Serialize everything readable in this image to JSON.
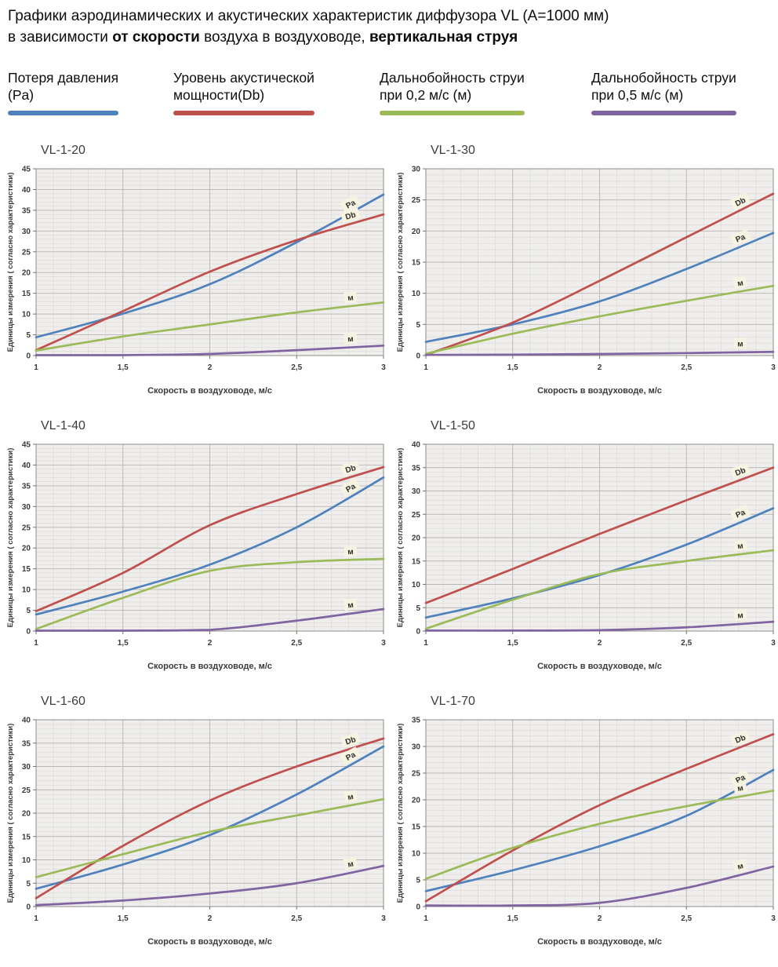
{
  "header": {
    "line1": "Графики аэродинамических и акустических характеристик  диффузора VL (A=1000 мм)",
    "line2_pre": "в зависимости ",
    "line2_bold1": "от скорости",
    "line2_mid": " воздуха в воздуховоде, ",
    "line2_bold2": "вертикальная струя"
  },
  "legend": {
    "items": [
      {
        "line1": "Потеря давления",
        "line2": "(Pa)",
        "color": "#4f81bd"
      },
      {
        "line1": "Уровень акустической",
        "line2": "мощности(Db)",
        "color": "#c0504d"
      },
      {
        "line1": "Дальнобойность струи",
        "line2": "при 0,2 м/с (м)",
        "color": "#9bbb59"
      },
      {
        "line1": "Дальнобойность струи",
        "line2": "при 0,5 м/с (м)",
        "color": "#8064a2"
      }
    ]
  },
  "axes": {
    "x_label": "Скорость в воздуховоде, м/с",
    "y_label": "Единицы измерения ( согласно характеристики)",
    "x_ticks": [
      "1",
      "1,5",
      "2",
      "2,5",
      "3"
    ]
  },
  "chart_data": [
    {
      "type": "line",
      "title": "VL-1-20",
      "x": [
        1,
        1.5,
        2,
        2.5,
        3
      ],
      "x_tick_labels": [
        "1",
        "1,5",
        "2",
        "2,5",
        "3"
      ],
      "xlabel": "Скорость в воздуховоде, м/с",
      "ylabel": "Единицы измерения ( согласно характеристики)",
      "ylim": [
        0,
        45
      ],
      "ytick_step": 5,
      "grid": "on",
      "series": [
        {
          "name": "Потеря давления (Pa)",
          "short_label": "Pa",
          "color": "#4f81bd",
          "values": [
            4.4,
            10.1,
            17.2,
            27.3,
            38.8
          ]
        },
        {
          "name": "Уровень акустической мощности (Db)",
          "short_label": "Db",
          "color": "#c0504d",
          "values": [
            1.3,
            10.7,
            20.2,
            27.8,
            34
          ]
        },
        {
          "name": "Дальнобойность струи при 0,2 м/с (м)",
          "short_label": "м",
          "color": "#9bbb59",
          "values": [
            1.2,
            4.6,
            7.5,
            10.4,
            12.8
          ]
        },
        {
          "name": "Дальнобойность струи при 0,5 м/с (м)",
          "short_label": "м",
          "color": "#8064a2",
          "values": [
            0.1,
            0.1,
            0.4,
            1.3,
            2.4
          ]
        }
      ]
    },
    {
      "type": "line",
      "title": "VL-1-30",
      "x": [
        1,
        1.5,
        2,
        2.5,
        3
      ],
      "x_tick_labels": [
        "1",
        "1,5",
        "2",
        "2,5",
        "3"
      ],
      "xlabel": "Скорость в воздуховоде, м/с",
      "ylabel": "Единицы измерения ( согласно характеристики)",
      "ylim": [
        0,
        30
      ],
      "ytick_step": 5,
      "grid": "on",
      "series": [
        {
          "name": "Потеря давления (Pa)",
          "short_label": "Pa",
          "color": "#4f81bd",
          "values": [
            2.2,
            5,
            8.7,
            13.9,
            19.7
          ]
        },
        {
          "name": "Уровень акустической мощности (Db)",
          "short_label": "Db",
          "color": "#c0504d",
          "values": [
            0.1,
            5.3,
            12,
            19,
            26
          ]
        },
        {
          "name": "Дальнобойность струи при 0,2 м/с (м)",
          "short_label": "м",
          "color": "#9bbb59",
          "values": [
            0.3,
            3.5,
            6.3,
            8.8,
            11.2
          ]
        },
        {
          "name": "Дальнобойность струи при 0,5 м/с (м)",
          "short_label": "м",
          "color": "#8064a2",
          "values": [
            0.1,
            0.15,
            0.25,
            0.4,
            0.6
          ]
        }
      ]
    },
    {
      "type": "line",
      "title": "VL-1-40",
      "x": [
        1,
        1.5,
        2,
        2.5,
        3
      ],
      "x_tick_labels": [
        "1",
        "1,5",
        "2",
        "2,5",
        "3"
      ],
      "xlabel": "Скорость в воздуховоде, м/с",
      "ylabel": "Единицы измерения ( согласно характеристики)",
      "ylim": [
        0,
        45
      ],
      "ytick_step": 5,
      "grid": "on",
      "series": [
        {
          "name": "Потеря давления (Pa)",
          "short_label": "Pa",
          "color": "#4f81bd",
          "values": [
            4,
            9.5,
            16,
            25,
            37
          ]
        },
        {
          "name": "Уровень акустической мощности (Db)",
          "short_label": "Db",
          "color": "#c0504d",
          "values": [
            4.8,
            14,
            25.5,
            33,
            39.5
          ]
        },
        {
          "name": "Дальнобойность струи при 0,2 м/с (м)",
          "short_label": "м",
          "color": "#9bbb59",
          "values": [
            0.5,
            8,
            14.5,
            16.6,
            17.4
          ]
        },
        {
          "name": "Дальнобойность струи при 0,5 м/с (м)",
          "short_label": "м",
          "color": "#8064a2",
          "values": [
            0.1,
            0.1,
            0.3,
            2.5,
            5.3
          ]
        }
      ]
    },
    {
      "type": "line",
      "title": "VL-1-50",
      "x": [
        1,
        1.5,
        2,
        2.5,
        3
      ],
      "x_tick_labels": [
        "1",
        "1,5",
        "2",
        "2,5",
        "3"
      ],
      "xlabel": "Скорость в воздуховоде, м/с",
      "ylabel": "Единицы измерения ( согласно характеристики)",
      "ylim": [
        0,
        40
      ],
      "ytick_step": 5,
      "grid": "on",
      "series": [
        {
          "name": "Потеря давления (Pa)",
          "short_label": "Pa",
          "color": "#4f81bd",
          "values": [
            2.9,
            7,
            12,
            18.5,
            26.3
          ]
        },
        {
          "name": "Уровень акустической мощности (Db)",
          "short_label": "Db",
          "color": "#c0504d",
          "values": [
            6,
            13.3,
            20.8,
            28,
            35
          ]
        },
        {
          "name": "Дальнобойность струи при 0,2 м/с (м)",
          "short_label": "м",
          "color": "#9bbb59",
          "values": [
            0.5,
            6.7,
            12.2,
            15,
            17.3
          ]
        },
        {
          "name": "Дальнобойность струи при 0,5 м/с (м)",
          "short_label": "м",
          "color": "#8064a2",
          "values": [
            0.1,
            0.1,
            0.2,
            0.8,
            2
          ]
        }
      ]
    },
    {
      "type": "line",
      "title": "VL-1-60",
      "x": [
        1,
        1.5,
        2,
        2.5,
        3
      ],
      "x_tick_labels": [
        "1",
        "1,5",
        "2",
        "2,5",
        "3"
      ],
      "xlabel": "Скорость в воздуховоде, м/с",
      "ylabel": "Единицы измерения ( согласно характеристики)",
      "ylim": [
        0,
        40
      ],
      "ytick_step": 5,
      "grid": "on",
      "series": [
        {
          "name": "Потеря давления (Pa)",
          "short_label": "Pa",
          "color": "#4f81bd",
          "values": [
            3.8,
            9,
            15.3,
            24,
            34.3
          ]
        },
        {
          "name": "Уровень акустической мощности (Db)",
          "short_label": "Db",
          "color": "#c0504d",
          "values": [
            1.8,
            13,
            22.7,
            30,
            36
          ]
        },
        {
          "name": "Дальнобойность струи при 0,2 м/с (м)",
          "short_label": "м",
          "color": "#9bbb59",
          "values": [
            6.3,
            11.2,
            16,
            19.5,
            23
          ]
        },
        {
          "name": "Дальнобойность струи при 0,5 м/с (м)",
          "short_label": "м",
          "color": "#8064a2",
          "values": [
            0.3,
            1.3,
            2.8,
            5,
            8.7
          ]
        }
      ]
    },
    {
      "type": "line",
      "title": "VL-1-70",
      "x": [
        1,
        1.5,
        2,
        2.5,
        3
      ],
      "x_tick_labels": [
        "1",
        "1,5",
        "2",
        "2,5",
        "3"
      ],
      "xlabel": "Скорость в воздуховоде, м/с",
      "ylabel": "Единицы измерения ( согласно характеристики)",
      "ylim": [
        0,
        35
      ],
      "ytick_step": 5,
      "grid": "on",
      "series": [
        {
          "name": "Потеря давления (Pa)",
          "short_label": "Pa",
          "color": "#4f81bd",
          "values": [
            2.9,
            6.8,
            11.3,
            17,
            25.6
          ]
        },
        {
          "name": "Уровень акустической мощности (Db)",
          "short_label": "Db",
          "color": "#c0504d",
          "values": [
            1,
            10.5,
            19,
            25.8,
            32.3
          ]
        },
        {
          "name": "Дальнобойность струи при 0,2 м/с (м)",
          "short_label": "м",
          "color": "#9bbb59",
          "values": [
            5.2,
            11,
            15.5,
            18.8,
            21.7
          ]
        },
        {
          "name": "Дальнобойность струи при 0,5 м/с (м)",
          "short_label": "м",
          "color": "#8064a2",
          "values": [
            0.2,
            0.2,
            0.7,
            3.5,
            7.5
          ]
        }
      ]
    }
  ]
}
